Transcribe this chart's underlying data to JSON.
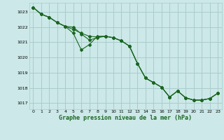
{
  "title": "Graphe pression niveau de la mer (hPa)",
  "background_color": "#cce8e8",
  "grid_color": "#aacccc",
  "line_color": "#1a6620",
  "ylim": [
    1016.6,
    1023.6
  ],
  "xlim": [
    -0.5,
    23.5
  ],
  "yticks": [
    1017,
    1018,
    1019,
    1020,
    1021,
    1022,
    1023
  ],
  "xticks": [
    0,
    1,
    2,
    3,
    4,
    5,
    6,
    7,
    8,
    9,
    10,
    11,
    12,
    13,
    14,
    15,
    16,
    17,
    18,
    19,
    20,
    21,
    22,
    23
  ],
  "line1": [
    1023.3,
    1022.85,
    1022.65,
    1022.3,
    1022.05,
    1021.85,
    1021.6,
    1021.4,
    1021.35,
    1021.4,
    1021.3,
    1021.1,
    1020.75,
    1019.6,
    1018.65,
    1018.35,
    1018.05,
    1017.4,
    1017.8,
    1017.35,
    1017.2,
    1017.2,
    1017.3,
    1017.65
  ],
  "line2": [
    1023.3,
    1022.85,
    1022.65,
    1022.3,
    1022.05,
    1022.0,
    1021.55,
    1021.15,
    1021.3,
    1021.4,
    1021.3,
    1021.1,
    1020.75,
    1019.6,
    1018.65,
    1018.35,
    1018.05,
    1017.4,
    1017.8,
    1017.35,
    1017.2,
    1017.2,
    1017.3,
    1017.65
  ],
  "line3": [
    1023.3,
    1022.85,
    1022.65,
    1022.3,
    1022.05,
    1021.6,
    1020.5,
    1020.85,
    1021.4,
    1021.4,
    1021.3,
    1021.1,
    1020.75,
    1019.6,
    1018.65,
    1018.35,
    1018.05,
    1017.4,
    1017.8,
    1017.35,
    1017.2,
    1017.2,
    1017.3,
    1017.65
  ]
}
